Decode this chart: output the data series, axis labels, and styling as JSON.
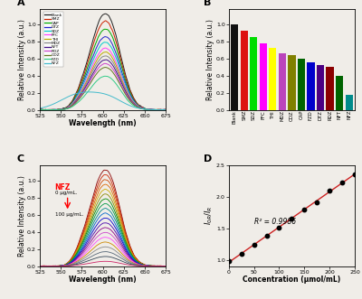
{
  "panel_A": {
    "title": "A",
    "xlabel": "Wavelength (nm)",
    "ylabel": "Relative Intensity (a.u.)",
    "series": [
      {
        "label": "Blank",
        "color": "#222222",
        "scale": 1.0,
        "noise": 0.012
      },
      {
        "label": "SMZ",
        "color": "#cc2200",
        "scale": 0.92,
        "noise": 0.01
      },
      {
        "label": "CAP",
        "color": "#00aa00",
        "scale": 0.84,
        "noise": 0.009
      },
      {
        "label": "DTZ",
        "color": "#2222cc",
        "scale": 0.76,
        "noise": 0.009
      },
      {
        "label": "SDZ",
        "color": "#00cccc",
        "scale": 0.7,
        "noise": 0.008
      },
      {
        "label": "FFC",
        "color": "#ff44ff",
        "scale": 0.64,
        "noise": 0.008
      },
      {
        "label": "THI",
        "color": "#bbaa00",
        "scale": 0.6,
        "noise": 0.007
      },
      {
        "label": "MDZ",
        "color": "#888888",
        "scale": 0.56,
        "noise": 0.007
      },
      {
        "label": "NFT",
        "color": "#441188",
        "scale": 0.52,
        "noise": 0.007
      },
      {
        "label": "RDZ",
        "color": "#cc44cc",
        "scale": 0.48,
        "noise": 0.007
      },
      {
        "label": "ODZ",
        "color": "#667722",
        "scale": 0.44,
        "noise": 0.006
      },
      {
        "label": "FZD",
        "color": "#33cc88",
        "scale": 0.35,
        "noise": 0.006
      },
      {
        "label": "NFZ",
        "color": "#44bbcc",
        "scale": 0.2,
        "noise": 0.005
      }
    ]
  },
  "panel_B": {
    "title": "B",
    "ylabel": "Relative Intensity (a.u.)",
    "categories": [
      "Blank",
      "SMZ",
      "SDZ",
      "FFC",
      "THI",
      "MDZ",
      "ODZ",
      "CAP",
      "FZD",
      "DTZ",
      "RDZ",
      "NFT",
      "NFZ"
    ],
    "values": [
      1.0,
      0.93,
      0.85,
      0.78,
      0.72,
      0.66,
      0.64,
      0.6,
      0.56,
      0.52,
      0.5,
      0.4,
      0.18
    ],
    "colors": [
      "#111111",
      "#dd1111",
      "#00dd00",
      "#ff00ff",
      "#ffff00",
      "#bb44bb",
      "#808000",
      "#006400",
      "#0000cc",
      "#4b0082",
      "#8b0000",
      "#006400",
      "#008b8b"
    ]
  },
  "panel_C": {
    "title": "C",
    "xlabel": "Wavelength (nm)",
    "ylabel": "Relative Intensity (a.u.)",
    "n_curves": 20,
    "annotation_label": "NFZ",
    "annotation_top": "0 μg/mL.",
    "annotation_bot": "100 μg/mL."
  },
  "panel_D": {
    "title": "D",
    "xlabel": "Concentration (μmol/mL)",
    "r2_text": "R² = 0.9986",
    "xrange": [
      0,
      250
    ],
    "yrange": [
      0.9,
      2.4
    ],
    "slope": 0.0056,
    "intercept": 0.96,
    "x_pts": [
      0,
      25,
      50,
      75,
      100,
      125,
      150,
      175,
      200,
      225,
      250
    ],
    "yticks": [
      1.0,
      1.5,
      2.0,
      2.5
    ],
    "xticks": [
      0,
      50,
      100,
      150,
      200,
      250
    ]
  }
}
